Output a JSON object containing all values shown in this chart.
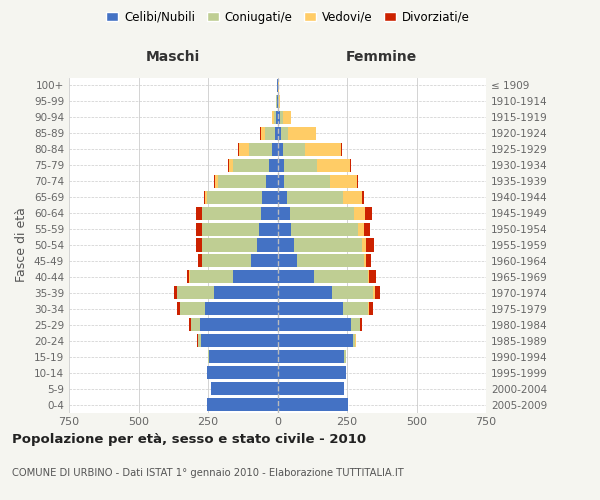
{
  "age_groups": [
    "0-4",
    "5-9",
    "10-14",
    "15-19",
    "20-24",
    "25-29",
    "30-34",
    "35-39",
    "40-44",
    "45-49",
    "50-54",
    "55-59",
    "60-64",
    "65-69",
    "70-74",
    "75-79",
    "80-84",
    "85-89",
    "90-94",
    "95-99",
    "100+"
  ],
  "birth_years": [
    "2005-2009",
    "2000-2004",
    "1995-1999",
    "1990-1994",
    "1985-1989",
    "1980-1984",
    "1975-1979",
    "1970-1974",
    "1965-1969",
    "1960-1964",
    "1955-1959",
    "1950-1954",
    "1945-1949",
    "1940-1944",
    "1935-1939",
    "1930-1934",
    "1925-1929",
    "1920-1924",
    "1915-1919",
    "1910-1914",
    "≤ 1909"
  ],
  "maschi": {
    "celibi": [
      255,
      240,
      255,
      245,
      275,
      280,
      260,
      230,
      160,
      95,
      75,
      65,
      60,
      55,
      40,
      30,
      18,
      10,
      5,
      2,
      2
    ],
    "coniugati": [
      0,
      0,
      0,
      5,
      10,
      30,
      90,
      130,
      155,
      175,
      195,
      205,
      210,
      200,
      175,
      130,
      85,
      35,
      8,
      2,
      0
    ],
    "vedovi": [
      0,
      0,
      0,
      0,
      2,
      2,
      2,
      2,
      2,
      2,
      2,
      2,
      3,
      5,
      10,
      15,
      35,
      15,
      5,
      0,
      0
    ],
    "divorziati": [
      0,
      0,
      0,
      0,
      2,
      5,
      8,
      12,
      10,
      15,
      20,
      22,
      20,
      5,
      5,
      3,
      3,
      2,
      0,
      0,
      0
    ]
  },
  "femmine": {
    "nubili": [
      255,
      240,
      245,
      240,
      270,
      265,
      235,
      195,
      130,
      70,
      60,
      50,
      45,
      35,
      25,
      22,
      18,
      12,
      10,
      3,
      2
    ],
    "coniugate": [
      0,
      0,
      0,
      5,
      10,
      30,
      90,
      150,
      195,
      240,
      245,
      240,
      230,
      200,
      165,
      120,
      80,
      25,
      8,
      2,
      0
    ],
    "vedove": [
      0,
      0,
      0,
      0,
      2,
      3,
      5,
      5,
      5,
      10,
      15,
      22,
      40,
      70,
      95,
      120,
      130,
      100,
      30,
      5,
      2
    ],
    "divorziate": [
      0,
      0,
      0,
      0,
      2,
      5,
      15,
      18,
      25,
      15,
      28,
      22,
      25,
      5,
      5,
      3,
      3,
      2,
      0,
      0,
      0
    ]
  },
  "colors": {
    "celibi_nubili": "#4472C4",
    "coniugati_e": "#BFCE93",
    "vedovi_e": "#FFCC66",
    "divorziati_e": "#CC2200"
  },
  "xlim": 750,
  "title": "Popolazione per età, sesso e stato civile - 2010",
  "subtitle": "COMUNE DI URBINO - Dati ISTAT 1° gennaio 2010 - Elaborazione TUTTITALIA.IT",
  "xlabel_left": "Maschi",
  "xlabel_right": "Femmine",
  "ylabel_left": "Fasce di età",
  "legend_labels": [
    "Celibi/Nubili",
    "Coniugati/e",
    "Vedovi/e",
    "Divorziati/e"
  ],
  "bg_color": "#f5f5f0",
  "plot_bg": "#ffffff"
}
